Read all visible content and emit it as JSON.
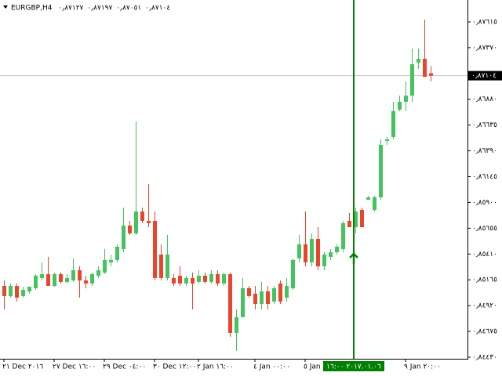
{
  "chart_data": {
    "type": "candlestick",
    "symbol": "EURGBP,H4",
    "header_values": [
      "٠٫٨٧١٢٧",
      "٠٫٨٧١٩٧",
      "٠٫٨٧٠٥١",
      "٠٫٨٧١٠٤"
    ],
    "up_color": "#45c35e",
    "down_color": "#e8452c",
    "categories": [
      "٢١ Dec ٢٠١٦",
      null,
      null,
      null,
      null,
      null,
      null,
      null,
      "٢٧ Dec ١٦:٠٠",
      null,
      null,
      null,
      null,
      null,
      null,
      null,
      "٢٩ Dec ٠٤:٠٠",
      null,
      null,
      null,
      null,
      null,
      null,
      null,
      "٣٠ Dec ١٢:٠٠",
      null,
      null,
      null,
      null,
      null,
      null,
      "٢ Jan ١٦:٠٠",
      null,
      null,
      null,
      null,
      null,
      null,
      null,
      null,
      "٤ Jan ٠٠:٠٠",
      null,
      null,
      null,
      null,
      null,
      null,
      null,
      "٥ Jan",
      null,
      null,
      null,
      null,
      null,
      null,
      null,
      "٢٠١٧.٠١.٠٦ ١٦:٠٠",
      null,
      null,
      null,
      null,
      null,
      null,
      null,
      "٩ Jan ٢٠:٠٠",
      null,
      null,
      null,
      null
    ],
    "crosshair_index": 56,
    "open": [
      0.85107,
      0.85011,
      0.85107,
      0.85011,
      0.85055,
      0.85085,
      0.85182,
      0.85219,
      0.85107,
      0.85219,
      0.85145,
      0.85159,
      0.85256,
      0.85159,
      0.8513,
      0.85204,
      0.85234,
      0.85331,
      0.85353,
      0.85457,
      0.8568,
      0.85606,
      0.85814,
      0.85725,
      0.85725,
      0.85405,
      0.85182,
      0.85182,
      0.85204,
      0.8513,
      0.85182,
      0.85145,
      0.85204,
      0.85145,
      0.85219,
      0.8513,
      0.85219,
      0.84661,
      0.8481,
      0.85085,
      0.85033,
      0.84936,
      0.85055,
      0.84959,
      0.8513,
      0.84996,
      0.85085,
      0.85368,
      0.85502,
      0.85331,
      0.85554,
      0.85293,
      0.85383,
      0.85427,
      0.85457,
      0.85725,
      0.85665,
      0.85829,
      0.85926,
      0.85829,
      0.85948,
      0.86484,
      0.86521,
      0.86781,
      0.86856,
      0.86915,
      0.87228,
      0.87265,
      0.87127
    ],
    "high": [
      0.85159,
      0.8513,
      0.8513,
      0.851,
      0.851,
      0.85219,
      0.85331,
      0.85383,
      0.85234,
      0.85234,
      0.85219,
      0.85368,
      0.85293,
      0.85204,
      0.85234,
      0.85293,
      0.85457,
      0.85405,
      0.85502,
      0.85851,
      0.85725,
      0.8667,
      0.85851,
      0.86075,
      0.85814,
      0.85502,
      0.85591,
      0.85219,
      0.85293,
      0.85204,
      0.85234,
      0.85256,
      0.85234,
      0.85256,
      0.85256,
      0.85234,
      0.85234,
      0.84884,
      0.85182,
      0.85107,
      0.85107,
      0.85145,
      0.85107,
      0.85107,
      0.85159,
      0.85182,
      0.85368,
      0.85591,
      0.85814,
      0.85606,
      0.85665,
      0.85427,
      0.85457,
      0.85502,
      0.85725,
      0.85799,
      0.85851,
      0.85851,
      0.85963,
      0.85963,
      0.86499,
      0.86521,
      0.86856,
      0.86915,
      0.87049,
      0.87362,
      0.87362,
      0.87637,
      0.87197
    ],
    "low": [
      0.84884,
      0.84996,
      0.84959,
      0.84996,
      0.85033,
      0.8507,
      0.85159,
      0.85107,
      0.851,
      0.8513,
      0.8513,
      0.85145,
      0.84996,
      0.85085,
      0.85107,
      0.85182,
      0.85219,
      0.85293,
      0.85331,
      0.85427,
      0.85591,
      0.85591,
      0.85703,
      0.85665,
      0.85159,
      0.85159,
      0.85159,
      0.85107,
      0.85107,
      0.85107,
      0.84884,
      0.8513,
      0.8513,
      0.8513,
      0.85107,
      0.85107,
      0.84624,
      0.8449,
      0.8481,
      0.84996,
      0.84884,
      0.84884,
      0.84884,
      0.84936,
      0.84936,
      0.84959,
      0.8507,
      0.85331,
      0.85293,
      0.85293,
      0.85256,
      0.85256,
      0.85353,
      0.85405,
      0.85427,
      0.85665,
      0.85606,
      0.85665,
      0.85926,
      0.85814,
      0.85926,
      0.86447,
      0.86499,
      0.86767,
      0.86767,
      0.86856,
      0.87168,
      0.87094,
      0.87051
    ],
    "close": [
      0.85011,
      0.85107,
      0.84996,
      0.8507,
      0.851,
      0.85204,
      0.85219,
      0.85107,
      0.85219,
      0.85145,
      0.85182,
      0.85256,
      0.85159,
      0.8513,
      0.85219,
      0.85256,
      0.85353,
      0.85353,
      0.85479,
      0.8568,
      0.85606,
      0.85814,
      0.85725,
      0.85703,
      0.85182,
      0.85182,
      0.85405,
      0.8513,
      0.8513,
      0.85182,
      0.8513,
      0.85204,
      0.85145,
      0.85219,
      0.8513,
      0.85219,
      0.84661,
      0.8481,
      0.85085,
      0.85011,
      0.84936,
      0.85055,
      0.84936,
      0.85085,
      0.84959,
      0.85107,
      0.85353,
      0.85502,
      0.85331,
      0.85554,
      0.85293,
      0.85405,
      0.85427,
      0.85479,
      0.85703,
      0.85665,
      0.85814,
      0.85665,
      0.85948,
      0.85948,
      0.86447,
      0.86499,
      0.86767,
      0.86856,
      0.86915,
      0.87213,
      0.87265,
      0.87094,
      0.87104
    ],
    "price_line": {
      "value": 0.87104,
      "label": "٠٫٨٧١٠٤"
    },
    "ylim": [
      0.84415,
      0.87823
    ],
    "yticks": [
      {
        "value": 0.87615,
        "label": "٠٫٨٧٦١٥"
      },
      {
        "value": 0.8737,
        "label": "٠٫٨٧٣٧٠"
      },
      {
        "value": 0.8688,
        "label": "٠٫٨٦٨٨٠"
      },
      {
        "value": 0.86635,
        "label": "٠٫٨٦٦٣٥"
      },
      {
        "value": 0.8639,
        "label": "٠٫٨٦٣٩٠"
      },
      {
        "value": 0.86145,
        "label": "٠٫٨٦١٤٥"
      },
      {
        "value": 0.859,
        "label": "٠٫٨٥٩٠٠"
      },
      {
        "value": 0.85655,
        "label": "٠٫٨٥٦٥٥"
      },
      {
        "value": 0.8541,
        "label": "٠٫٨٥٤١٠"
      },
      {
        "value": 0.85165,
        "label": "٠٫٨٥١٦٥"
      },
      {
        "value": 0.8492,
        "label": "٠٫٨٤٩٢٠"
      },
      {
        "value": 0.84675,
        "label": "٠٫٨٤٦٧٥"
      },
      {
        "value": 0.8443,
        "label": "٠٫٨٤٤٣٠"
      }
    ]
  }
}
